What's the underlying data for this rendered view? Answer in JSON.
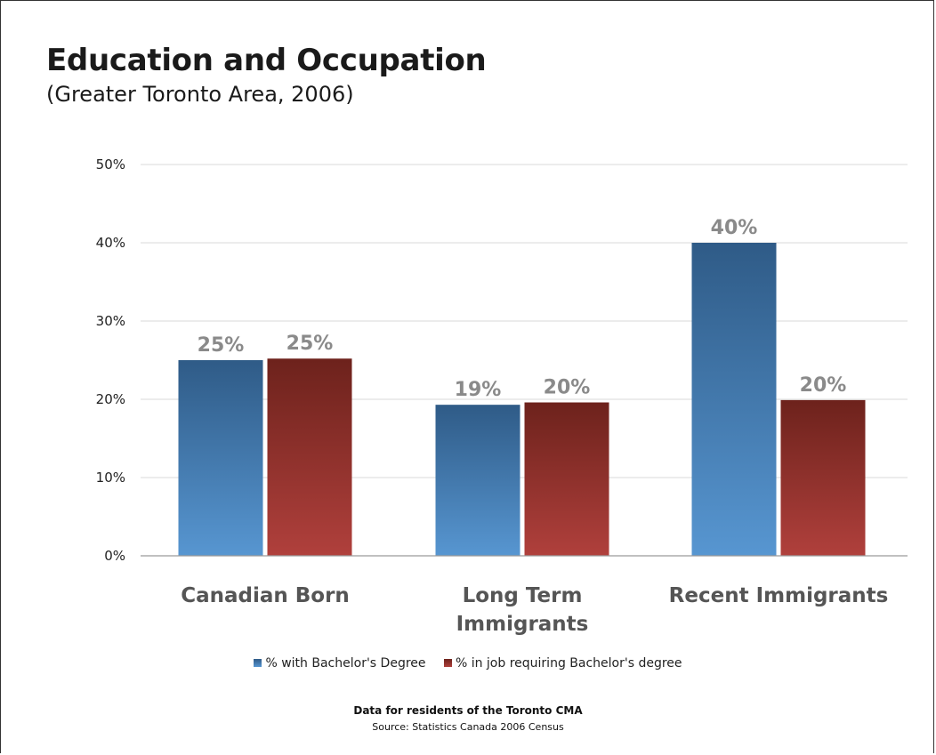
{
  "chart_data": {
    "type": "bar",
    "title": "Education and Occupation",
    "subtitle": "(Greater Toronto Area, 2006)",
    "categories": [
      "Canadian Born",
      "Long Term Immigrants",
      "Recent Immigrants"
    ],
    "category_lines": [
      [
        "Canadian Born"
      ],
      [
        "Long Term",
        "Immigrants"
      ],
      [
        "Recent Immigrants"
      ]
    ],
    "series": [
      {
        "name": "% with Bachelor's Degree",
        "values": [
          25,
          19.3,
          40
        ],
        "data_labels": [
          "25%",
          "19%",
          "40%"
        ],
        "color_top": "#2f5b87",
        "color_bottom": "#5796d1"
      },
      {
        "name": "% in job requiring Bachelor's degree",
        "values": [
          25.2,
          19.6,
          19.9
        ],
        "data_labels": [
          "25%",
          "20%",
          "20%"
        ],
        "color_top": "#6d221c",
        "color_bottom": "#b0403c"
      }
    ],
    "ylim": [
      0,
      50
    ],
    "yticks": [
      0,
      10,
      20,
      30,
      40,
      50
    ],
    "ytick_labels": [
      "0%",
      "10%",
      "20%",
      "30%",
      "40%",
      "50%"
    ],
    "grid": true,
    "legend_position": "bottom",
    "xlabel": "",
    "ylabel": ""
  },
  "footer": {
    "note": "Data for residents of the Toronto CMA",
    "source": "Source: Statistics Canada 2006 Census"
  }
}
